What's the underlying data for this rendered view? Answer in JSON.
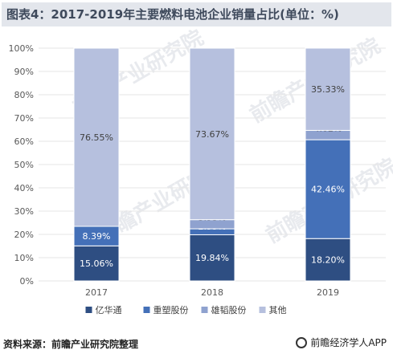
{
  "title": "图表4：2017-2019年主要燃料电池企业销量占比(单位：%)",
  "source": "资料来源：前瞻产业研究院整理",
  "brand": "前瞻经济学人APP",
  "watermark": "前瞻产业研究院",
  "chart_data": {
    "type": "bar",
    "stacked": true,
    "categories": [
      "2017",
      "2018",
      "2019"
    ],
    "series": [
      {
        "name": "亿华通",
        "values": [
          15.06,
          19.84,
          18.2
        ],
        "color": "#2e4e82"
      },
      {
        "name": "重塑股份",
        "values": [
          8.39,
          2.55,
          42.46
        ],
        "color": "#4470b8"
      },
      {
        "name": "雄韬股份",
        "values": [
          0.0,
          3.93,
          4.02
        ],
        "color": "#8fa2cf"
      },
      {
        "name": "其他",
        "values": [
          76.55,
          73.67,
          35.33
        ],
        "color": "#b6c0de"
      }
    ],
    "labels": [
      [
        "15.06%",
        "19.84%",
        "18.20%"
      ],
      [
        "8.39%",
        "2.55%",
        "42.46%"
      ],
      [
        "",
        "3.93%",
        "4.02%"
      ],
      [
        "76.55%",
        "73.67%",
        "35.33%"
      ]
    ],
    "ylim": [
      0,
      100
    ],
    "yticks": [
      "0%",
      "10%",
      "20%",
      "30%",
      "40%",
      "50%",
      "60%",
      "70%",
      "80%",
      "90%",
      "100%"
    ],
    "legend_position": "bottom",
    "grid": true
  }
}
